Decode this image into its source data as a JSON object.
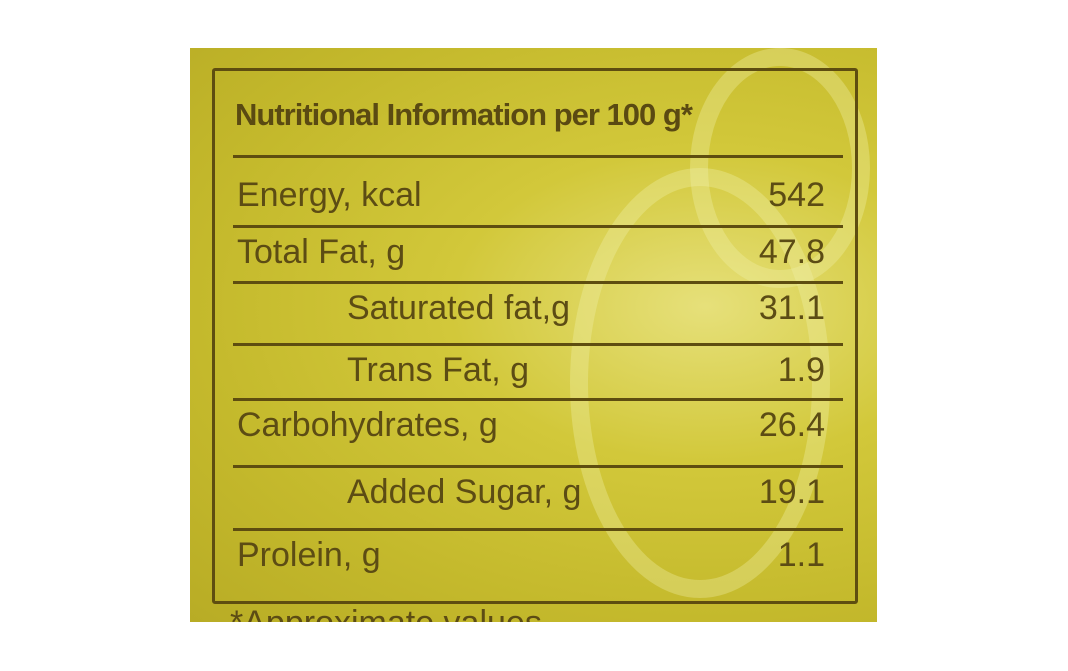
{
  "label": {
    "title": "Nutritional Information per 100 g*",
    "rows": [
      {
        "name": "Energy, kcal",
        "value": "542",
        "indent": false
      },
      {
        "name": "Total Fat, g",
        "value": "47.8",
        "indent": false
      },
      {
        "name": "Saturated fat,g",
        "value": "31.1",
        "indent": true
      },
      {
        "name": "Trans Fat, g",
        "value": "1.9",
        "indent": true
      },
      {
        "name": "Carbohydrates, g",
        "value": "26.4",
        "indent": false
      },
      {
        "name": "Added Sugar, g",
        "value": "19.1",
        "indent": true
      },
      {
        "name": "Prolein, g",
        "value": "1.1",
        "indent": false
      }
    ],
    "footnote": "*Approximate values"
  },
  "colors": {
    "background": "#c9bf30",
    "ink": "#5c4c14"
  }
}
